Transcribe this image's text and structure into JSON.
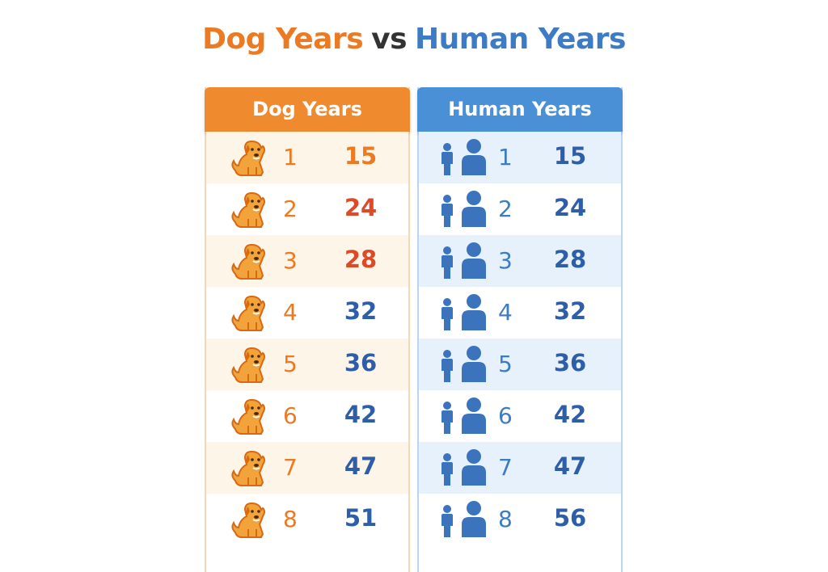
{
  "title": {
    "parts": [
      "Dog Years",
      "vs",
      "Human Years"
    ],
    "colors": [
      "#ec7a22",
      "#333333",
      "#3d7cc4"
    ]
  },
  "tables": [
    {
      "header": "Dog Years",
      "header_color": "#f08a2e",
      "stripe_color": "#fdf5e8",
      "border_color": "#f6d7b5",
      "age_color": "#ec7a22",
      "icon": "dog",
      "rows": [
        [
          1,
          15
        ],
        [
          2,
          24
        ],
        [
          3,
          28
        ],
        [
          4,
          32
        ],
        [
          5,
          36
        ],
        [
          6,
          42
        ],
        [
          7,
          47
        ],
        [
          8,
          51
        ]
      ],
      "value_colors": [
        "#ec7a22",
        "#dd4a28",
        "#dd4a28",
        "#2f5ea8",
        "#2f5ea8",
        "#2f5ea8",
        "#2f5ea8",
        "#2f5ea8"
      ]
    },
    {
      "header": "Human Years",
      "header_color": "#4a90d6",
      "stripe_color": "#e7f1fb",
      "border_color": "#bcd6ef",
      "age_color": "#3d7cc4",
      "icon": "person",
      "rows": [
        [
          1,
          15
        ],
        [
          2,
          24
        ],
        [
          3,
          28
        ],
        [
          4,
          32
        ],
        [
          5,
          36
        ],
        [
          6,
          42
        ],
        [
          7,
          47
        ],
        [
          8,
          56
        ]
      ],
      "value_colors": [
        "#2f5ea8",
        "#2f5ea8",
        "#2f5ea8",
        "#2f5ea8",
        "#2f5ea8",
        "#2f5ea8",
        "#2f5ea8",
        "#2f5ea8"
      ]
    }
  ]
}
